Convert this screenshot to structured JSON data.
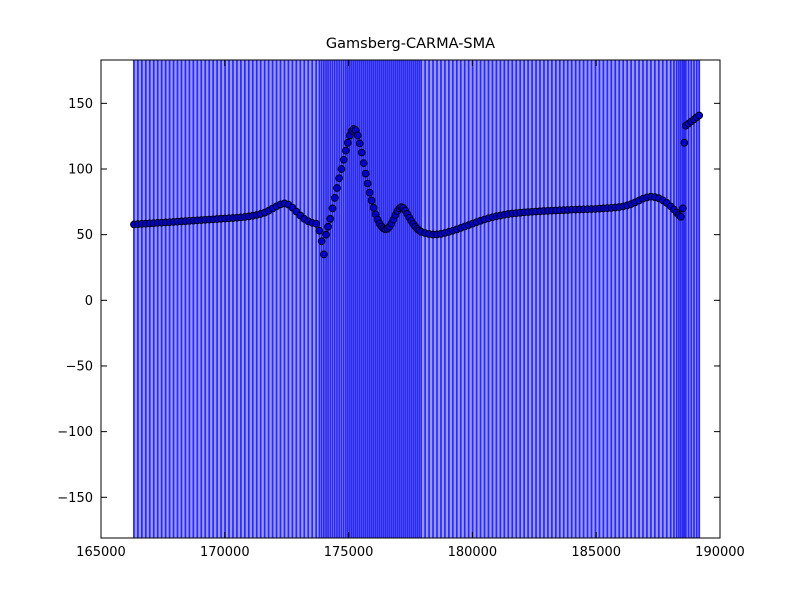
{
  "figure": {
    "title": "Gamsberg-CARMA-SMA",
    "background": "#ffffff"
  },
  "chart_data": {
    "type": "scatter",
    "title": "Gamsberg-CARMA-SMA",
    "xlabel": "",
    "ylabel": "",
    "xlim": [
      165000,
      190000
    ],
    "ylim": [
      -181,
      183
    ],
    "x_tick_values": [
      165000,
      170000,
      175000,
      180000,
      185000,
      190000
    ],
    "x_tick_labels": [
      "165000",
      "170000",
      "175000",
      "180000",
      "185000",
      "190000"
    ],
    "y_tick_values": [
      150,
      100,
      50,
      0,
      -50,
      -100,
      -150
    ],
    "y_tick_labels": [
      "150",
      "100",
      "50",
      "0",
      "−50",
      "−100",
      "−150"
    ],
    "grid": false,
    "legend": "none",
    "colors": {
      "errorbar_line": "#2b2bf0",
      "errorbar_field": "#9898fb",
      "marker_fill": "#0000cd",
      "marker_edge": "#000000",
      "axis": "#000000",
      "text": "#000000"
    },
    "errorbars": {
      "style": "vertical-full-height",
      "x_start": 166330,
      "x_end": 189160,
      "note": "y-error exceeds axis range; bars span full plot height (clipped)"
    },
    "points": [
      [
        166330,
        57.8
      ],
      [
        166490,
        58.0
      ],
      [
        166650,
        58.2
      ],
      [
        166810,
        58.4
      ],
      [
        166970,
        58.6
      ],
      [
        167130,
        58.8
      ],
      [
        167290,
        59.0
      ],
      [
        167450,
        59.1
      ],
      [
        167610,
        59.3
      ],
      [
        167770,
        59.5
      ],
      [
        167930,
        59.7
      ],
      [
        168090,
        59.9
      ],
      [
        168250,
        60.1
      ],
      [
        168410,
        60.3
      ],
      [
        168570,
        60.5
      ],
      [
        168730,
        60.7
      ],
      [
        168890,
        60.9
      ],
      [
        169050,
        61.1
      ],
      [
        169210,
        61.3
      ],
      [
        169370,
        61.5
      ],
      [
        169530,
        61.7
      ],
      [
        169690,
        61.9
      ],
      [
        169850,
        62.1
      ],
      [
        170010,
        62.3
      ],
      [
        170170,
        62.5
      ],
      [
        170330,
        62.7
      ],
      [
        170490,
        62.9
      ],
      [
        170650,
        63.2
      ],
      [
        170810,
        63.5
      ],
      [
        170970,
        63.9
      ],
      [
        171130,
        64.4
      ],
      [
        171290,
        65.0
      ],
      [
        171450,
        65.8
      ],
      [
        171610,
        66.8
      ],
      [
        171770,
        68.2
      ],
      [
        171930,
        69.9
      ],
      [
        172090,
        71.6
      ],
      [
        172250,
        73.0
      ],
      [
        172410,
        73.8
      ],
      [
        172570,
        72.9
      ],
      [
        172730,
        70.6
      ],
      [
        172890,
        67.6
      ],
      [
        173050,
        64.6
      ],
      [
        173210,
        62.0
      ],
      [
        173370,
        60.2
      ],
      [
        173530,
        59.0
      ],
      [
        173690,
        58.3
      ],
      [
        173820,
        53.0
      ],
      [
        173910,
        45.0
      ],
      [
        174000,
        35.0
      ],
      [
        174090,
        50.0
      ],
      [
        174170,
        56.0
      ],
      [
        174260,
        62.0
      ],
      [
        174350,
        70.0
      ],
      [
        174440,
        78.0
      ],
      [
        174530,
        85.5
      ],
      [
        174620,
        93.0
      ],
      [
        174710,
        100.0
      ],
      [
        174800,
        107.0
      ],
      [
        174890,
        114.0
      ],
      [
        174970,
        120.0
      ],
      [
        175050,
        125.5
      ],
      [
        175130,
        129.0
      ],
      [
        175210,
        130.5
      ],
      [
        175290,
        129.5
      ],
      [
        175370,
        125.5
      ],
      [
        175450,
        119.5
      ],
      [
        175530,
        112.5
      ],
      [
        175610,
        104.5
      ],
      [
        175690,
        96.5
      ],
      [
        175770,
        89.0
      ],
      [
        175850,
        82.0
      ],
      [
        175930,
        76.0
      ],
      [
        176010,
        70.5
      ],
      [
        176090,
        65.5
      ],
      [
        176170,
        61.5
      ],
      [
        176250,
        58.5
      ],
      [
        176330,
        56.3
      ],
      [
        176410,
        54.8
      ],
      [
        176490,
        54.0
      ],
      [
        176570,
        54.5
      ],
      [
        176650,
        56.0
      ],
      [
        176730,
        58.5
      ],
      [
        176810,
        61.5
      ],
      [
        176890,
        65.0
      ],
      [
        176970,
        68.0
      ],
      [
        177050,
        70.0
      ],
      [
        177130,
        71.0
      ],
      [
        177210,
        70.3
      ],
      [
        177290,
        68.3
      ],
      [
        177370,
        65.8
      ],
      [
        177450,
        63.0
      ],
      [
        177530,
        60.5
      ],
      [
        177610,
        58.2
      ],
      [
        177690,
        56.2
      ],
      [
        177770,
        54.5
      ],
      [
        177850,
        53.2
      ],
      [
        177930,
        52.2
      ],
      [
        178090,
        51.2
      ],
      [
        178250,
        50.5
      ],
      [
        178410,
        50.1
      ],
      [
        178570,
        50.2
      ],
      [
        178730,
        50.6
      ],
      [
        178890,
        51.3
      ],
      [
        179050,
        52.1
      ],
      [
        179210,
        53.0
      ],
      [
        179370,
        54.0
      ],
      [
        179530,
        55.1
      ],
      [
        179690,
        56.2
      ],
      [
        179850,
        57.3
      ],
      [
        180010,
        58.4
      ],
      [
        180170,
        59.5
      ],
      [
        180330,
        60.6
      ],
      [
        180490,
        61.6
      ],
      [
        180650,
        62.5
      ],
      [
        180810,
        63.3
      ],
      [
        180970,
        64.0
      ],
      [
        181130,
        64.6
      ],
      [
        181290,
        65.2
      ],
      [
        181450,
        65.7
      ],
      [
        181610,
        66.1
      ],
      [
        181770,
        66.4
      ],
      [
        181930,
        66.7
      ],
      [
        182090,
        67.0
      ],
      [
        182250,
        67.2
      ],
      [
        182410,
        67.4
      ],
      [
        182570,
        67.6
      ],
      [
        182730,
        67.8
      ],
      [
        182890,
        68.0
      ],
      [
        183050,
        68.1
      ],
      [
        183210,
        68.3
      ],
      [
        183370,
        68.4
      ],
      [
        183530,
        68.6
      ],
      [
        183690,
        68.7
      ],
      [
        183850,
        68.8
      ],
      [
        184010,
        69.0
      ],
      [
        184170,
        69.1
      ],
      [
        184330,
        69.2
      ],
      [
        184490,
        69.3
      ],
      [
        184650,
        69.4
      ],
      [
        184810,
        69.5
      ],
      [
        184970,
        69.6
      ],
      [
        185130,
        69.8
      ],
      [
        185290,
        70.0
      ],
      [
        185450,
        70.2
      ],
      [
        185610,
        70.4
      ],
      [
        185770,
        70.7
      ],
      [
        185930,
        71.0
      ],
      [
        186090,
        71.5
      ],
      [
        186250,
        72.3
      ],
      [
        186410,
        73.3
      ],
      [
        186570,
        74.6
      ],
      [
        186730,
        76.0
      ],
      [
        186890,
        77.4
      ],
      [
        187050,
        78.4
      ],
      [
        187210,
        78.9
      ],
      [
        187370,
        78.6
      ],
      [
        187530,
        77.7
      ],
      [
        187690,
        76.2
      ],
      [
        187850,
        74.2
      ],
      [
        188010,
        71.6
      ],
      [
        188140,
        69.2
      ],
      [
        188250,
        66.8
      ],
      [
        188340,
        64.9
      ],
      [
        188420,
        63.6
      ],
      [
        188500,
        70.0
      ],
      [
        188560,
        120.0
      ],
      [
        188620,
        133.0
      ],
      [
        188730,
        134.6
      ],
      [
        188840,
        136.2
      ],
      [
        188950,
        137.8
      ],
      [
        189060,
        139.4
      ],
      [
        189160,
        140.8
      ]
    ]
  }
}
